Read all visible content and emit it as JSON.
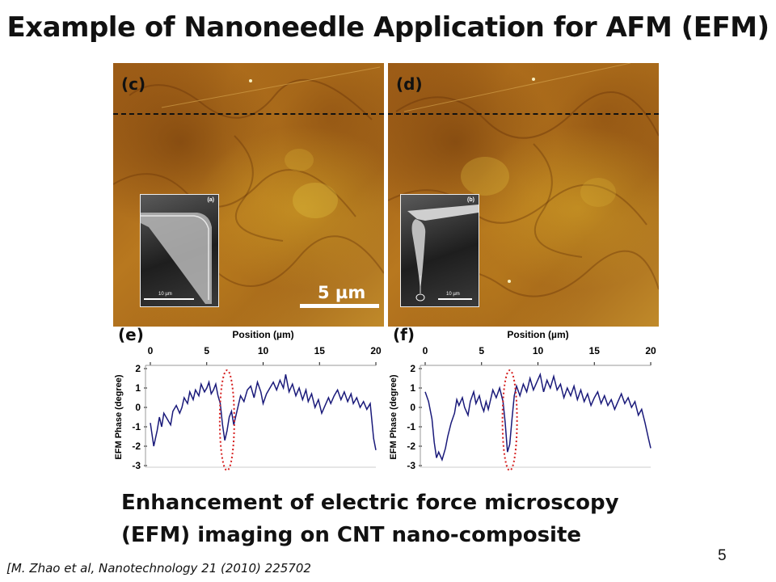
{
  "slide": {
    "title": "Example of Nanoneedle Application for AFM (EFM)",
    "caption_line1": "Enhancement of electric force microscopy",
    "caption_line2": "(EFM) imaging on CNT nano-composite",
    "reference": "[M. Zhao et al, Nanotechnology 21 (2010) 225702",
    "page_number": "5"
  },
  "figure": {
    "panel_c_label": "(c)",
    "panel_d_label": "(d)",
    "panel_e_label": "(e)",
    "panel_f_label": "(f)",
    "inset_a_label": "(a)",
    "inset_b_label": "(b)",
    "inset_scale_text": "10 µm",
    "scalebar_text": "5 µm"
  },
  "chart_data": [
    {
      "type": "line",
      "panel": "(e)",
      "xlabel": "Position (µm)",
      "ylabel": "EFM Phase (degree)",
      "xticks": [
        0,
        5,
        10,
        15,
        20
      ],
      "yticks": [
        2,
        1,
        0,
        -1,
        -2,
        -3
      ],
      "xlim": [
        0,
        20
      ],
      "ylim": [
        -3,
        2
      ],
      "line_color": "#1a1a7a",
      "highlight_color": "#d62020",
      "highlight_x": 6.8,
      "x": [
        0,
        0.3,
        0.6,
        0.8,
        1.0,
        1.2,
        1.5,
        1.8,
        2.0,
        2.3,
        2.6,
        2.8,
        3.0,
        3.3,
        3.5,
        3.8,
        4.0,
        4.3,
        4.5,
        4.8,
        5.0,
        5.2,
        5.4,
        5.6,
        5.8,
        6.0,
        6.2,
        6.4,
        6.6,
        6.8,
        7.0,
        7.2,
        7.4,
        7.6,
        7.8,
        8.0,
        8.3,
        8.6,
        8.9,
        9.2,
        9.5,
        9.8,
        10.0,
        10.3,
        10.6,
        10.9,
        11.2,
        11.5,
        11.8,
        12.0,
        12.3,
        12.6,
        12.9,
        13.2,
        13.5,
        13.8,
        14.0,
        14.3,
        14.6,
        14.9,
        15.2,
        15.5,
        15.8,
        16.0,
        16.3,
        16.6,
        16.9,
        17.2,
        17.5,
        17.8,
        18.0,
        18.3,
        18.6,
        18.9,
        19.2,
        19.5,
        19.8,
        20.0
      ],
      "y": [
        -0.8,
        -2.0,
        -1.2,
        -0.5,
        -1.0,
        -0.3,
        -0.6,
        -0.9,
        -0.2,
        0.1,
        -0.3,
        0.0,
        0.5,
        0.2,
        0.8,
        0.4,
        0.9,
        0.6,
        1.2,
        0.8,
        1.0,
        1.3,
        0.7,
        0.9,
        1.2,
        0.6,
        0.2,
        -0.9,
        -1.7,
        -1.2,
        -0.5,
        -0.2,
        -0.9,
        -0.4,
        0.1,
        0.6,
        0.3,
        0.9,
        1.1,
        0.5,
        1.3,
        0.8,
        0.2,
        0.7,
        1.0,
        1.3,
        0.9,
        1.4,
        1.0,
        1.7,
        0.8,
        1.2,
        0.6,
        1.0,
        0.4,
        0.9,
        0.3,
        0.7,
        0.0,
        0.4,
        -0.3,
        0.1,
        0.5,
        0.2,
        0.6,
        0.9,
        0.4,
        0.8,
        0.3,
        0.7,
        0.2,
        0.5,
        0.0,
        0.3,
        -0.1,
        0.2,
        -1.6,
        -2.2
      ]
    },
    {
      "type": "line",
      "panel": "(f)",
      "xlabel": "Position (µm)",
      "ylabel": "EFM Phase (degree)",
      "xticks": [
        0,
        5,
        10,
        15,
        20
      ],
      "yticks": [
        2,
        1,
        0,
        -1,
        -2,
        -3
      ],
      "xlim": [
        0,
        20
      ],
      "ylim": [
        -3,
        2
      ],
      "line_color": "#1a1a7a",
      "highlight_color": "#d62020",
      "highlight_x": 7.5,
      "x": [
        0,
        0.3,
        0.6,
        0.8,
        1.0,
        1.2,
        1.5,
        1.8,
        2.0,
        2.3,
        2.6,
        2.8,
        3.0,
        3.3,
        3.5,
        3.8,
        4.0,
        4.3,
        4.5,
        4.8,
        5.0,
        5.2,
        5.4,
        5.6,
        5.8,
        6.0,
        6.3,
        6.6,
        6.9,
        7.1,
        7.3,
        7.5,
        7.7,
        7.9,
        8.1,
        8.4,
        8.7,
        9.0,
        9.3,
        9.6,
        9.9,
        10.2,
        10.5,
        10.8,
        11.1,
        11.4,
        11.7,
        12.0,
        12.3,
        12.6,
        12.9,
        13.2,
        13.5,
        13.8,
        14.1,
        14.4,
        14.7,
        15.0,
        15.3,
        15.6,
        15.9,
        16.2,
        16.5,
        16.8,
        17.1,
        17.4,
        17.7,
        18.0,
        18.3,
        18.6,
        18.9,
        19.2,
        19.5,
        19.8,
        20.0
      ],
      "y": [
        0.8,
        0.3,
        -0.6,
        -1.8,
        -2.6,
        -2.3,
        -2.7,
        -2.1,
        -1.5,
        -0.8,
        -0.3,
        0.4,
        0.1,
        0.5,
        0.0,
        -0.4,
        0.3,
        0.8,
        0.2,
        0.6,
        0.1,
        -0.2,
        0.3,
        -0.1,
        0.4,
        0.9,
        0.5,
        1.0,
        0.3,
        -0.8,
        -2.3,
        -1.9,
        -0.6,
        0.6,
        1.1,
        0.6,
        1.2,
        0.8,
        1.5,
        0.9,
        1.3,
        1.7,
        0.8,
        1.4,
        1.0,
        1.6,
        0.9,
        1.2,
        0.5,
        1.0,
        0.6,
        1.1,
        0.4,
        0.9,
        0.3,
        0.7,
        0.1,
        0.5,
        0.8,
        0.2,
        0.6,
        0.1,
        0.4,
        -0.1,
        0.3,
        0.7,
        0.2,
        0.5,
        0.0,
        0.3,
        -0.4,
        -0.1,
        -0.8,
        -1.6,
        -2.1
      ]
    }
  ]
}
